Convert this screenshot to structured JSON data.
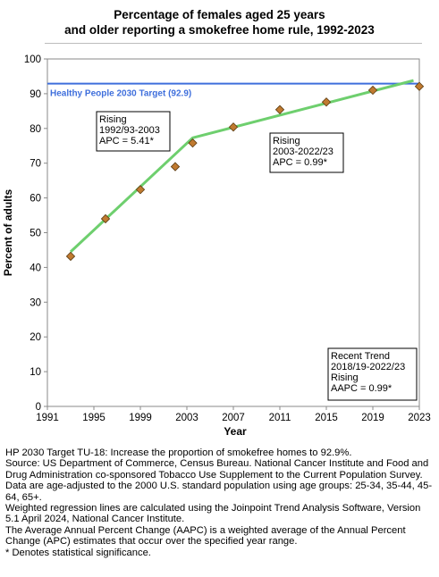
{
  "header": {
    "title_line1": "Percentage of females aged 25 years",
    "title_line2": "and older reporting a smokefree home rule, 1992-2023"
  },
  "chart_data": {
    "type": "scatter",
    "xlabel": "Year",
    "ylabel": "Percent of adults",
    "xlim": [
      1991,
      2023
    ],
    "ylim": [
      0,
      100
    ],
    "x_ticks": [
      1991,
      1995,
      1999,
      2003,
      2007,
      2011,
      2015,
      2019,
      2023
    ],
    "y_ticks": [
      0,
      10,
      20,
      30,
      40,
      50,
      60,
      70,
      80,
      90,
      100
    ],
    "observed": {
      "x": [
        1993,
        1996,
        1999,
        2002,
        2003.5,
        2007,
        2011,
        2015,
        2019,
        2023
      ],
      "y": [
        43.2,
        54.0,
        62.4,
        69.0,
        75.8,
        80.4,
        85.4,
        87.6,
        91.0,
        92.1
      ],
      "color": "#c07a30"
    },
    "trend": {
      "x": [
        1993,
        2003.5,
        2022.5
      ],
      "y": [
        44.5,
        77.3,
        93.8
      ],
      "color": "#6ecf6e"
    },
    "target": {
      "value": 92.9,
      "label": "Healthy People 2030 Target (92.9)",
      "color": "#3f6fdc"
    },
    "annotations": [
      {
        "lines": [
          "Rising",
          "1992/93-2003",
          "APC =  5.41*"
        ]
      },
      {
        "lines": [
          "Rising",
          "2003-2022/23",
          "APC =  0.99*"
        ]
      },
      {
        "lines": [
          "Recent Trend",
          "2018/19-2022/23",
          "Rising",
          "AAPC =  0.99*"
        ]
      }
    ]
  },
  "footnotes": [
    "HP 2030 Target TU-18: Increase the proportion of smokefree homes to 92.9%.",
    "Source: US Department of Commerce, Census Bureau. National Cancer Institute and Food and Drug Administration co-sponsored Tobacco Use Supplement to the Current Population Survey.",
    "Data are age-adjusted to the 2000 U.S. standard population using age groups: 25-34, 35-44, 45-64, 65+.",
    "Weighted regression lines are calculated using the Joinpoint Trend Analysis Software, Version 5.1 April 2024, National Cancer Institute.",
    "The Average Annual Percent Change (AAPC) is a weighted average of the Annual Percent Change (APC) estimates that occur over the specified year range.",
    "* Denotes statistical significance."
  ]
}
